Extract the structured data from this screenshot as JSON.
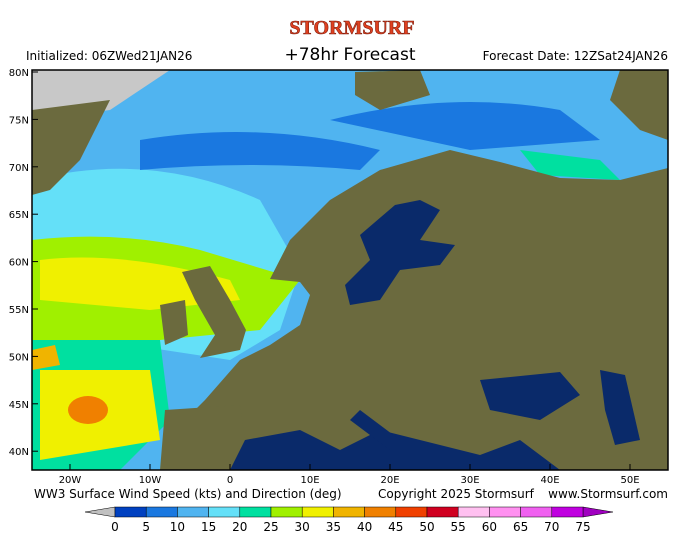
{
  "header": {
    "logo": "STORMSURF",
    "initialized": "Initialized: 06ZWed21JAN26",
    "title": "+78hr Forecast",
    "forecast_date": "Forecast Date: 12ZSat24JAN26"
  },
  "map": {
    "lat_labels": [
      "80N",
      "75N",
      "70N",
      "65N",
      "60N",
      "55N",
      "50N",
      "45N",
      "40N"
    ],
    "lon_labels": [
      "20W",
      "10W",
      "0",
      "10E",
      "20E",
      "30E",
      "40E",
      "50E"
    ]
  },
  "footer": {
    "product": "WW3 Surface Wind Speed (kts) and Direction (deg)",
    "copyright": "Copyright 2025 Stormsurf",
    "website": "www.Stormsurf.com"
  },
  "legend": {
    "ticks": [
      0,
      5,
      10,
      15,
      20,
      25,
      30,
      35,
      40,
      45,
      50,
      55,
      60,
      65,
      70,
      75
    ],
    "colors": [
      "#0040c0",
      "#1a78e0",
      "#50b4f0",
      "#64e0f8",
      "#00e0a0",
      "#a0f000",
      "#f0f000",
      "#f0b400",
      "#f08000",
      "#f04000",
      "#d00020",
      "#ffc0f0",
      "#ff90f0",
      "#f060f0",
      "#c000e0"
    ],
    "under_color": "#c0c0c0",
    "over_color": "#a000c0"
  }
}
